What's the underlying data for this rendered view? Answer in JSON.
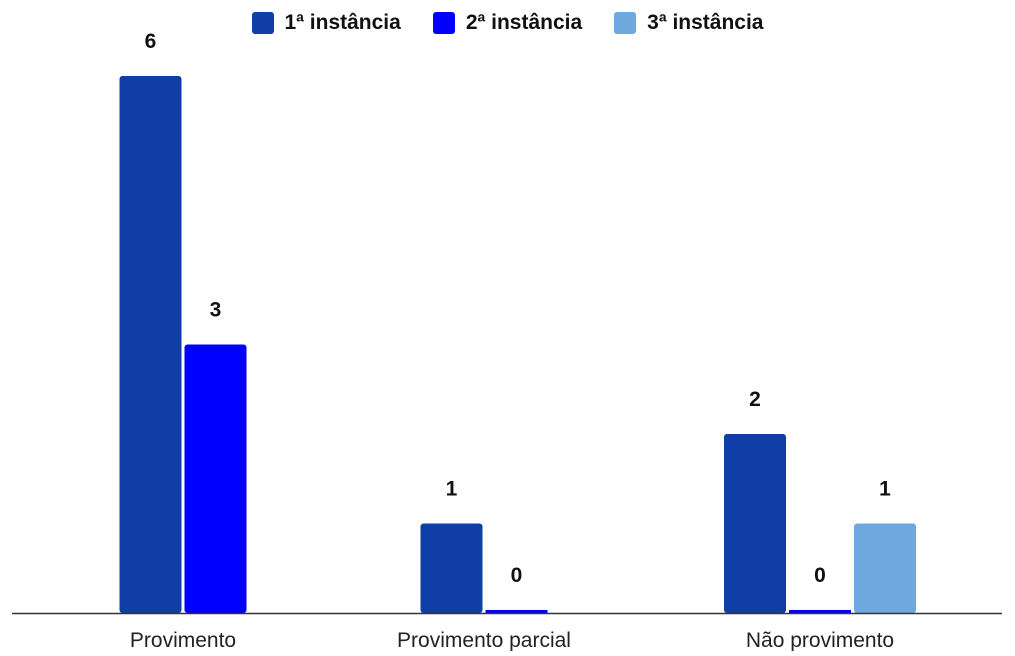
{
  "chart_data": {
    "type": "bar",
    "title": "",
    "xlabel": "",
    "ylabel": "",
    "categories": [
      "Provimento",
      "Provimento parcial",
      "Não provimento"
    ],
    "series": [
      {
        "name": "1ª instância",
        "color": "#0f3fa6",
        "values": [
          6,
          1,
          2
        ]
      },
      {
        "name": "2ª instância",
        "color": "#0000ff",
        "values": [
          3,
          0,
          0
        ]
      },
      {
        "name": "3ª instância",
        "color": "#6fa8dc",
        "values": [
          null,
          null,
          1
        ]
      }
    ],
    "ylim": [
      0,
      6
    ],
    "grid": false,
    "legend_position": "top-center",
    "data_labels": true
  }
}
